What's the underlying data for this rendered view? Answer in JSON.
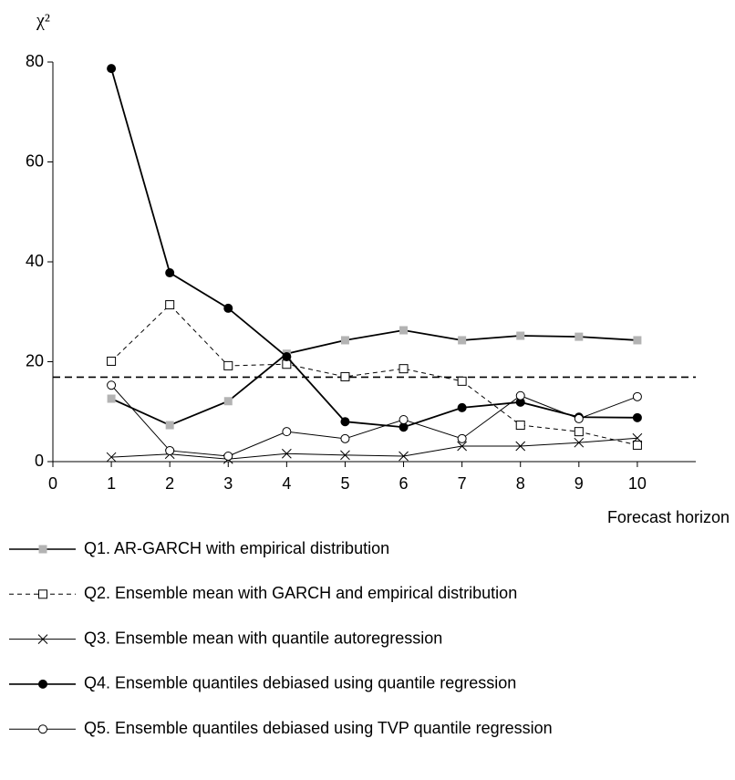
{
  "chart_data": {
    "type": "line",
    "y_label": "χ²",
    "x_label": "Forecast horizon",
    "x": [
      1,
      2,
      3,
      4,
      5,
      6,
      7,
      8,
      9,
      10
    ],
    "xlim": [
      0,
      11
    ],
    "xticks": [
      0,
      1,
      2,
      3,
      4,
      5,
      6,
      7,
      8,
      9,
      10
    ],
    "ylim": [
      0,
      80
    ],
    "yticks": [
      0,
      20,
      40,
      60,
      80
    ],
    "reference_line": 16.9,
    "series": [
      {
        "name": "Q1. AR-GARCH with empirical distribution",
        "color": "#000000",
        "marker": "square",
        "marker_fill": "#b3b3b3",
        "dashed": false,
        "values": [
          12.6,
          7.3,
          12.1,
          21.6,
          24.3,
          26.3,
          24.3,
          25.2,
          25.0,
          24.3
        ]
      },
      {
        "name": "Q2. Ensemble mean with GARCH and empirical distribution",
        "color": "#000000",
        "marker": "square",
        "marker_fill": "#ffffff",
        "dashed": true,
        "values": [
          20.1,
          31.4,
          19.2,
          19.5,
          17.0,
          18.6,
          16.1,
          7.3,
          6.0,
          3.3
        ]
      },
      {
        "name": "Q3. Ensemble mean with quantile autoregression",
        "color": "#000000",
        "marker": "cross",
        "marker_fill": "none",
        "dashed": false,
        "values": [
          0.9,
          1.5,
          0.5,
          1.6,
          1.3,
          1.1,
          3.1,
          3.1,
          3.8,
          4.7
        ]
      },
      {
        "name": "Q4. Ensemble quantiles debiased using quantile regression",
        "color": "#000000",
        "marker": "circle",
        "marker_fill": "#000000",
        "dashed": false,
        "values": [
          78.7,
          37.8,
          30.7,
          21.0,
          8.0,
          6.9,
          10.8,
          11.9,
          8.9,
          8.8
        ]
      },
      {
        "name": "Q5. Ensemble quantiles debiased using TVP quantile regression",
        "color": "#000000",
        "marker": "circle",
        "marker_fill": "#ffffff",
        "dashed": false,
        "values": [
          15.3,
          2.2,
          1.1,
          6.0,
          4.6,
          8.4,
          4.6,
          13.2,
          8.6,
          13.0
        ]
      }
    ]
  }
}
